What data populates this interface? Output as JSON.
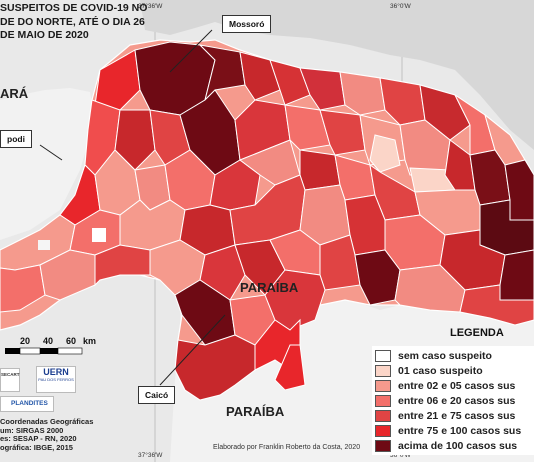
{
  "title": {
    "line1": "SUSPEITOS DE COVID-19 NO",
    "line2": "DE DO NORTE, ATÉ O DIA 26",
    "line3": "DE MAIO DE 2020"
  },
  "coords": {
    "top_left": "37°36'W",
    "top_right": "36°0'W",
    "bottom_left": "37°36'W",
    "bottom_right": "36°0'W"
  },
  "regions": {
    "ceara": "ARÁ",
    "paraiba_top": "PARAÍBA",
    "paraiba_bottom": "PARAÍBA"
  },
  "callouts": {
    "mossoro": "Mossoró",
    "apodi": "podi",
    "caico": "Caicó"
  },
  "scale": {
    "ticks": [
      "20",
      "40",
      "60"
    ],
    "unit": "km"
  },
  "logos": {
    "secart": "SECART",
    "uern": "UERN",
    "uern_sub": "PAU DOS FERROS",
    "plandites": "PLANDITES"
  },
  "meta": {
    "line1": "Coordenadas Geográficas",
    "line2": "um: SIRGAS 2000",
    "line3": "es: SESAP - RN, 2020",
    "line4": "ográfica: IBGE, 2015"
  },
  "credit": "Elaborado por Franklin Roberto da Costa, 2020",
  "legend": {
    "title": "LEGENDA",
    "items": [
      {
        "label": "sem caso suspeito",
        "color": "#ffffff"
      },
      {
        "label": "01 caso suspeito",
        "color": "#fbd5c8"
      },
      {
        "label": "entre 02 e 05 casos sus",
        "color": "#f59a8d"
      },
      {
        "label": "entre 06 e 20 casos sus",
        "color": "#f36f6a"
      },
      {
        "label": "entre 21 e 75 casos sus",
        "color": "#e04444"
      },
      {
        "label": "entre 75 e 100 casos sus",
        "color": "#e8262b"
      },
      {
        "label": "acima de 100 casos sus",
        "color": "#6e0a14"
      }
    ]
  }
}
